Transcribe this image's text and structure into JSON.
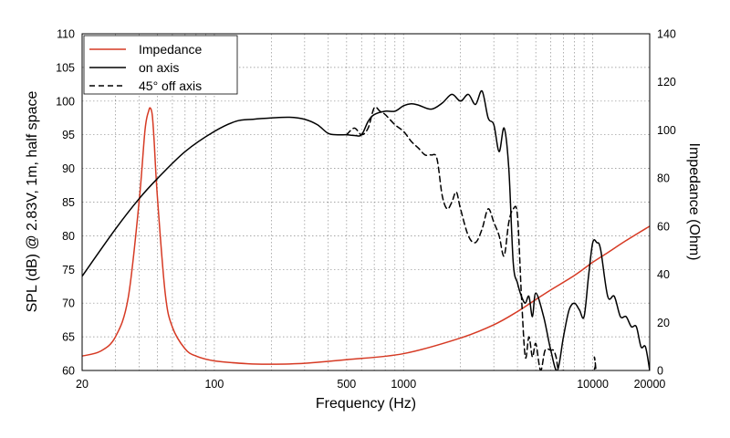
{
  "chart_data": {
    "type": "line",
    "title": "",
    "xlabel": "Frequency (Hz)",
    "ylabel_left": "SPL (dB) @ 2.83V, 1m, half space",
    "ylabel_right": "Impedance (Ohm)",
    "x_scale": "log",
    "xlim": [
      20,
      20000
    ],
    "ylim_left": [
      60,
      110
    ],
    "ylim_right": [
      0,
      140
    ],
    "grid": true,
    "legend_position": "top-left",
    "x_ticks": [
      {
        "value": 20,
        "label": "20"
      },
      {
        "value": 100,
        "label": "100"
      },
      {
        "value": 500,
        "label": "500"
      },
      {
        "value": 1000,
        "label": "1000"
      },
      {
        "value": 10000,
        "label": "10000"
      },
      {
        "value": 20000,
        "label": "20000"
      }
    ],
    "y_left_ticks": [
      {
        "value": 60,
        "label": "60"
      },
      {
        "value": 65,
        "label": "65"
      },
      {
        "value": 70,
        "label": "70"
      },
      {
        "value": 75,
        "label": "75"
      },
      {
        "value": 80,
        "label": "80"
      },
      {
        "value": 85,
        "label": "85"
      },
      {
        "value": 90,
        "label": "90"
      },
      {
        "value": 95,
        "label": "95"
      },
      {
        "value": 100,
        "label": "100"
      },
      {
        "value": 105,
        "label": "105"
      },
      {
        "value": 110,
        "label": "110"
      }
    ],
    "y_right_ticks": [
      {
        "value": 0,
        "label": "0"
      },
      {
        "value": 20,
        "label": "20"
      },
      {
        "value": 40,
        "label": "40"
      },
      {
        "value": 60,
        "label": "60"
      },
      {
        "value": 80,
        "label": "80"
      },
      {
        "value": 100,
        "label": "100"
      },
      {
        "value": 120,
        "label": "120"
      },
      {
        "value": 140,
        "label": "140"
      }
    ],
    "series": [
      {
        "name": "Impedance",
        "axis": "right",
        "color": "#d63a24",
        "dash": "solid",
        "x": [
          20,
          25,
          30,
          35,
          40,
          43,
          45,
          46,
          47,
          48,
          50,
          55,
          60,
          70,
          80,
          100,
          150,
          200,
          300,
          500,
          1000,
          2000,
          3000,
          4000,
          5000,
          6000,
          8000,
          10000,
          12000,
          15000,
          20000
        ],
        "y": [
          6,
          8,
          14,
          30,
          70,
          100,
          108,
          109,
          106,
          96,
          72,
          32,
          18,
          9,
          6,
          4,
          2.8,
          2.6,
          3.0,
          4.5,
          7,
          13.5,
          19,
          24.5,
          29.5,
          33.5,
          39.5,
          45,
          49,
          54,
          60
        ]
      },
      {
        "name": "on axis",
        "axis": "left",
        "color": "#000000",
        "dash": "solid",
        "x": [
          20,
          30,
          40,
          50,
          70,
          100,
          130,
          160,
          200,
          250,
          300,
          350,
          400,
          450,
          500,
          550,
          600,
          650,
          700,
          800,
          900,
          1000,
          1100,
          1200,
          1400,
          1600,
          1800,
          2000,
          2200,
          2400,
          2600,
          2800,
          3000,
          3200,
          3400,
          3600,
          3800,
          4000,
          4200,
          4400,
          4600,
          4800,
          5000,
          5500,
          6000,
          6500,
          7000,
          7500,
          8000,
          8500,
          9000,
          9500,
          10000,
          10500,
          11000,
          12000,
          13000,
          14000,
          15000,
          16000,
          17000,
          18000,
          19000,
          20000
        ],
        "y": [
          74,
          81,
          85.5,
          88.5,
          92.5,
          95.5,
          97,
          97.3,
          97.5,
          97.6,
          97.3,
          96.5,
          95.2,
          95,
          95,
          94.9,
          95,
          97,
          98,
          98.5,
          98.5,
          99.3,
          99.6,
          99.4,
          98.8,
          99.7,
          101,
          100,
          101,
          99.5,
          101.5,
          97.5,
          96.5,
          92.5,
          96,
          90,
          76,
          73,
          71,
          70,
          71,
          68,
          71.5,
          68,
          63,
          60,
          65,
          69,
          70,
          69,
          68,
          74,
          79,
          79,
          78,
          71,
          71,
          68,
          68,
          66.5,
          66.5,
          63.5,
          63.5,
          60
        ]
      },
      {
        "name": "45° off axis",
        "axis": "left",
        "color": "#000000",
        "dash": "dashed",
        "x": [
          500,
          550,
          600,
          650,
          700,
          750,
          800,
          900,
          1000,
          1100,
          1200,
          1300,
          1400,
          1500,
          1600,
          1700,
          1800,
          1900,
          2000,
          2200,
          2400,
          2600,
          2800,
          3000,
          3200,
          3400,
          3600,
          3800,
          4000,
          4200,
          4400,
          4600,
          4800,
          5000,
          5300,
          5600,
          6000,
          6200,
          6400,
          6600,
          7000,
          10000,
          10200,
          10400
        ],
        "y": [
          95,
          96,
          95,
          96,
          99,
          98.5,
          98,
          96.5,
          95.5,
          94,
          93,
          92,
          92,
          91.5,
          86,
          84,
          85,
          86.5,
          84,
          80,
          79,
          81,
          84,
          82,
          80,
          77,
          82,
          84,
          83,
          71,
          62,
          65,
          62,
          64,
          60,
          63,
          63,
          63,
          62,
          60,
          60,
          60,
          62,
          60
        ]
      }
    ]
  }
}
